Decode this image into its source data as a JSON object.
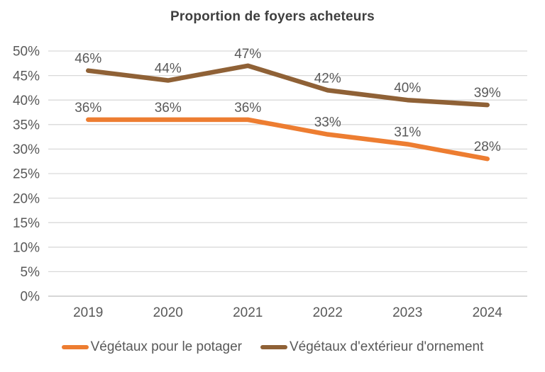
{
  "title": "Proportion de foyers acheteurs",
  "styles": {
    "background": "#FFFFFF",
    "title_color": "#3F3F3F",
    "axis_text_color": "#595959",
    "data_label_color": "#595959",
    "gridline_color": "#D9D9D9",
    "axis_line_color": "#D6D6D6"
  },
  "chart_data": {
    "type": "line",
    "title": "Proportion de foyers acheteurs",
    "categories": [
      "2019",
      "2020",
      "2021",
      "2022",
      "2023",
      "2024"
    ],
    "series": [
      {
        "name": "Végétaux pour le potager",
        "color": "#ED7D31",
        "values": [
          36,
          36,
          36,
          33,
          31,
          28
        ]
      },
      {
        "name": "Végétaux d'extérieur d'ornement",
        "color": "#8F6136",
        "values": [
          46,
          44,
          47,
          42,
          40,
          39
        ]
      }
    ],
    "xlabel": "",
    "ylabel": "",
    "ylim": [
      0,
      50
    ],
    "ytick_step": 5,
    "ytick_suffix": "%",
    "data_label_suffix": "%",
    "grid": true,
    "legend_position": "bottom"
  }
}
